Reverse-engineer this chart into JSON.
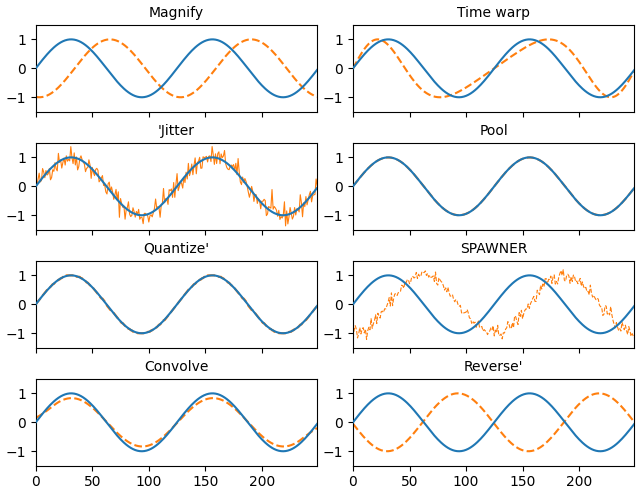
{
  "n_points": 250,
  "titles_left": [
    "Magnify",
    "'Jitter",
    "Quantize'",
    "Convolve"
  ],
  "titles_right": [
    "Time warp",
    "Pool",
    "SPAWNER",
    "Reverse'"
  ],
  "blue_color": "#1f77b4",
  "orange_color": "#ff7f0e",
  "figsize": [
    6.4,
    4.95
  ],
  "dpi": 100,
  "noise_seed": 42
}
